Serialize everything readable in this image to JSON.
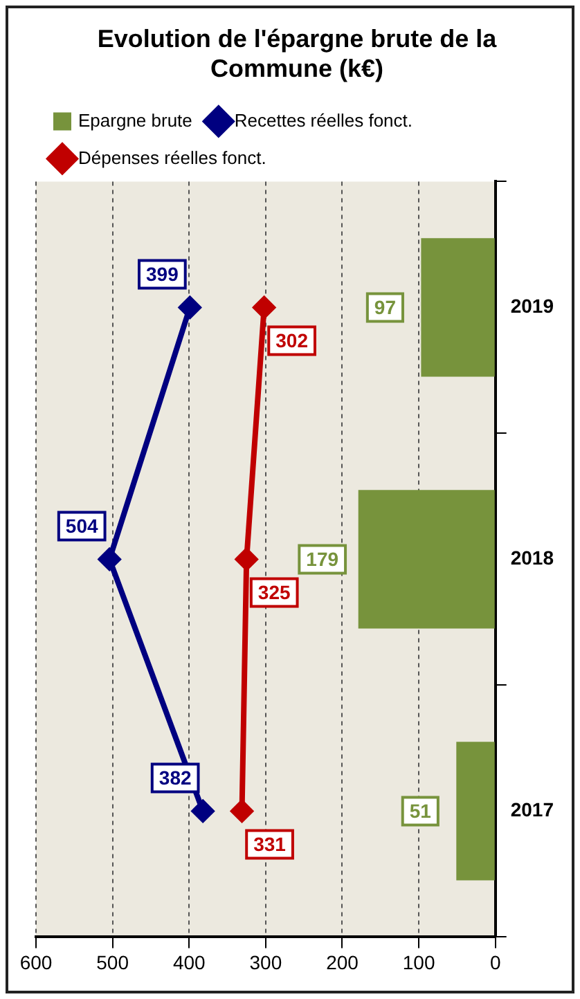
{
  "chart_data": {
    "type": "bar",
    "orientation": "horizontal",
    "title": "Evolution de l'épargne brute de la Commune (k€)",
    "categories": [
      "2019",
      "2018",
      "2017"
    ],
    "series": [
      {
        "name": "Epargne brute",
        "color": "#77933c",
        "values": [
          97,
          179,
          51
        ]
      },
      {
        "name": "Recettes réelles fonct.",
        "type": "line",
        "color": "#000080",
        "values": [
          399,
          504,
          382
        ]
      },
      {
        "name": "Dépenses réelles fonct.",
        "type": "line",
        "color": "#c00000",
        "values": [
          302,
          325,
          331
        ]
      }
    ],
    "xlim": [
      600,
      0
    ],
    "xticks": [
      600,
      500,
      400,
      300,
      200,
      100,
      0
    ],
    "grid": "x",
    "legend": "top",
    "data_labels": true,
    "marker": "diamond"
  }
}
